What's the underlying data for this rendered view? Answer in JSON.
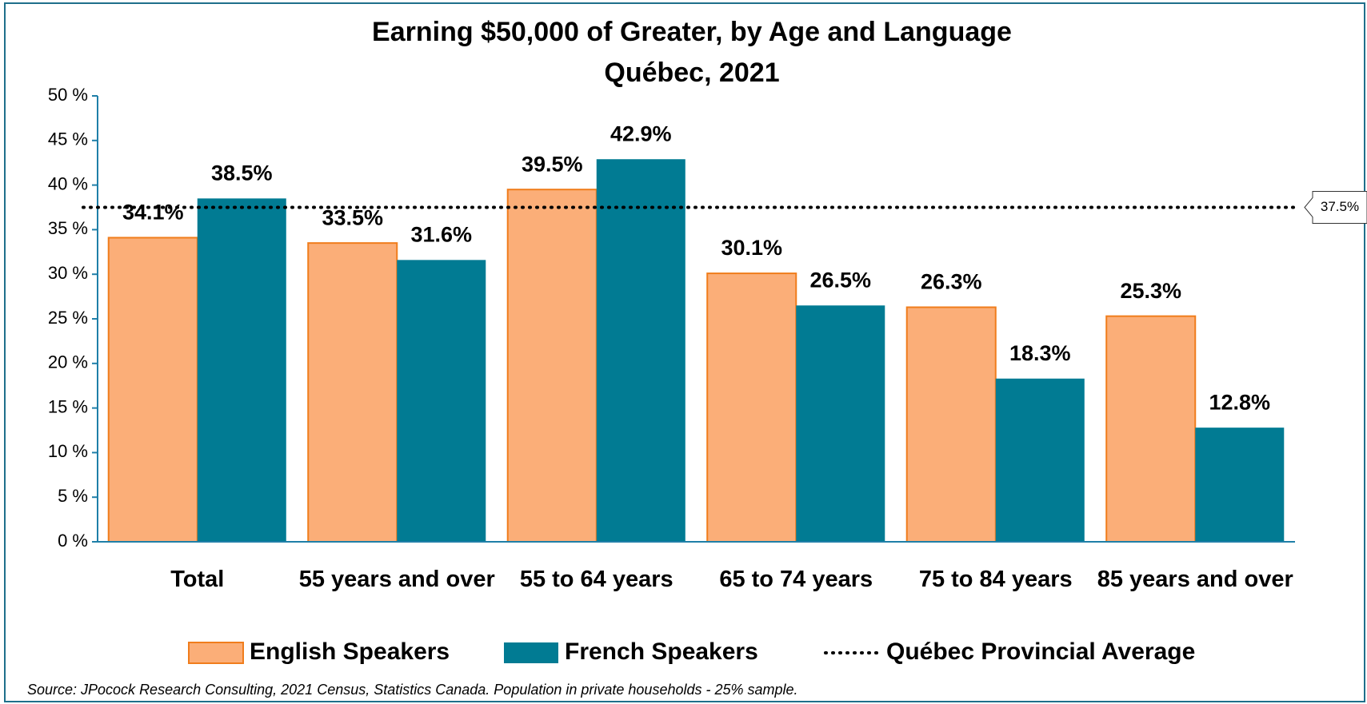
{
  "chart_data": {
    "type": "bar",
    "title": "Earning $50,000 of Greater, by Age and Language",
    "subtitle": "Québec, 2021",
    "categories": [
      "Total",
      "55 years and over",
      "55 to 64 years",
      "65 to 74 years",
      "75 to 84 years",
      "85 years and over"
    ],
    "series": [
      {
        "name": "English Speakers",
        "color": "#fbae78",
        "values": [
          34.1,
          33.5,
          39.5,
          30.1,
          26.3,
          25.3
        ],
        "value_labels": [
          "34.1%",
          "33.5%",
          "39.5%",
          "30.1%",
          "26.3%",
          "25.3%"
        ]
      },
      {
        "name": "French Speakers",
        "color": "#017b93",
        "values": [
          38.5,
          31.6,
          42.9,
          26.5,
          18.3,
          12.8
        ],
        "value_labels": [
          "38.5%",
          "31.6%",
          "42.9%",
          "26.5%",
          "18.3%",
          "12.8%"
        ]
      }
    ],
    "average": {
      "name": "Québec Provincial Average",
      "value": 37.5,
      "value_label": "37.5%"
    },
    "ylim": [
      0,
      50
    ],
    "yticks": [
      {
        "value": 0,
        "label": "0 %"
      },
      {
        "value": 5,
        "label": "5 %"
      },
      {
        "value": 10,
        "label": "10 %"
      },
      {
        "value": 15,
        "label": "15 %"
      },
      {
        "value": 20,
        "label": "20 %"
      },
      {
        "value": 25,
        "label": "25 %"
      },
      {
        "value": 30,
        "label": "30 %"
      },
      {
        "value": 35,
        "label": "35 %"
      },
      {
        "value": 40,
        "label": "40 %"
      },
      {
        "value": 45,
        "label": "45 %"
      },
      {
        "value": 50,
        "label": "50 %"
      }
    ],
    "source": "Source: JPocock Research Consulting, 2021 Census, Statistics Canada. Population in private households - 25% sample."
  }
}
